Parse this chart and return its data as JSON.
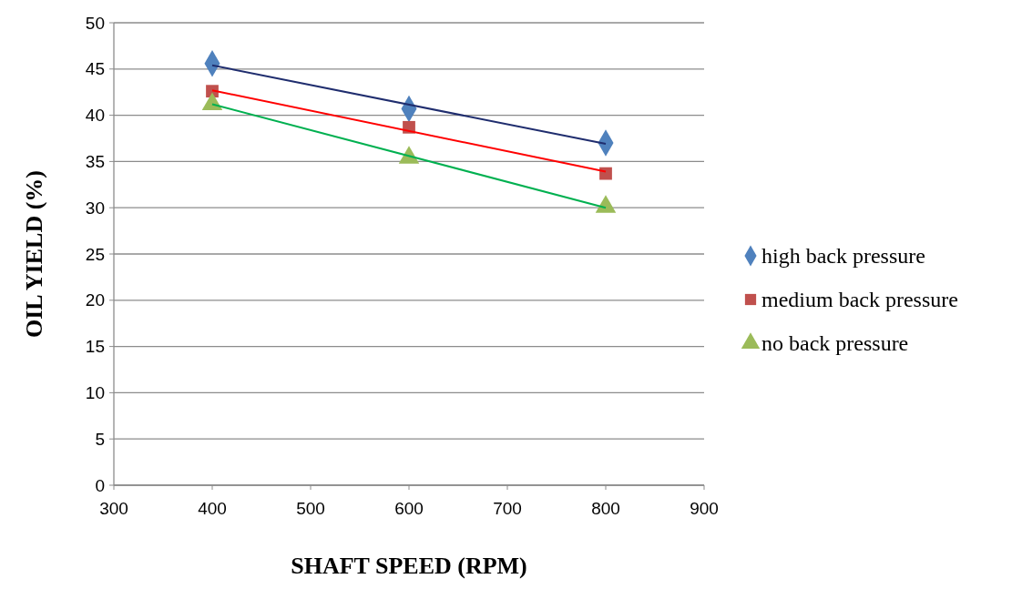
{
  "chart_data": {
    "type": "scatter",
    "xlabel": "SHAFT SPEED (RPM)",
    "ylabel": "OIL YIELD (%)",
    "xlim": [
      300,
      900
    ],
    "xticks": [
      300,
      400,
      500,
      600,
      700,
      800,
      900
    ],
    "ylim": [
      0,
      50
    ],
    "yticks": [
      0,
      5,
      10,
      15,
      20,
      25,
      30,
      35,
      40,
      45,
      50
    ],
    "grid": "y",
    "legend": "right",
    "series": [
      {
        "name": "high back pressure",
        "color": "#4f81bd",
        "marker": "diamond",
        "x": [
          400,
          600,
          800
        ],
        "values": [
          45.6,
          40.7,
          37.0
        ]
      },
      {
        "name": "medium back pressure",
        "color": "#c0504d",
        "marker": "square",
        "x": [
          400,
          600,
          800
        ],
        "values": [
          42.6,
          38.7,
          33.7
        ]
      },
      {
        "name": "no back pressure",
        "color": "#9bbb59",
        "marker": "triangle",
        "x": [
          400,
          600,
          800
        ],
        "values": [
          41.2,
          35.4,
          30.1
        ]
      },
      {
        "type": "line",
        "color": "#1f2d6e",
        "marker": "none",
        "line_style": "solid",
        "x": [
          400,
          800
        ],
        "values": [
          45.4,
          36.9
        ]
      },
      {
        "type": "line",
        "color": "#ff0000",
        "marker": "none",
        "line_style": "solid",
        "x": [
          400,
          800
        ],
        "values": [
          42.7,
          33.9
        ]
      },
      {
        "type": "line",
        "color": "#00b050",
        "marker": "none",
        "line_style": "solid",
        "x": [
          400,
          800
        ],
        "values": [
          41.2,
          30.0
        ]
      }
    ]
  }
}
